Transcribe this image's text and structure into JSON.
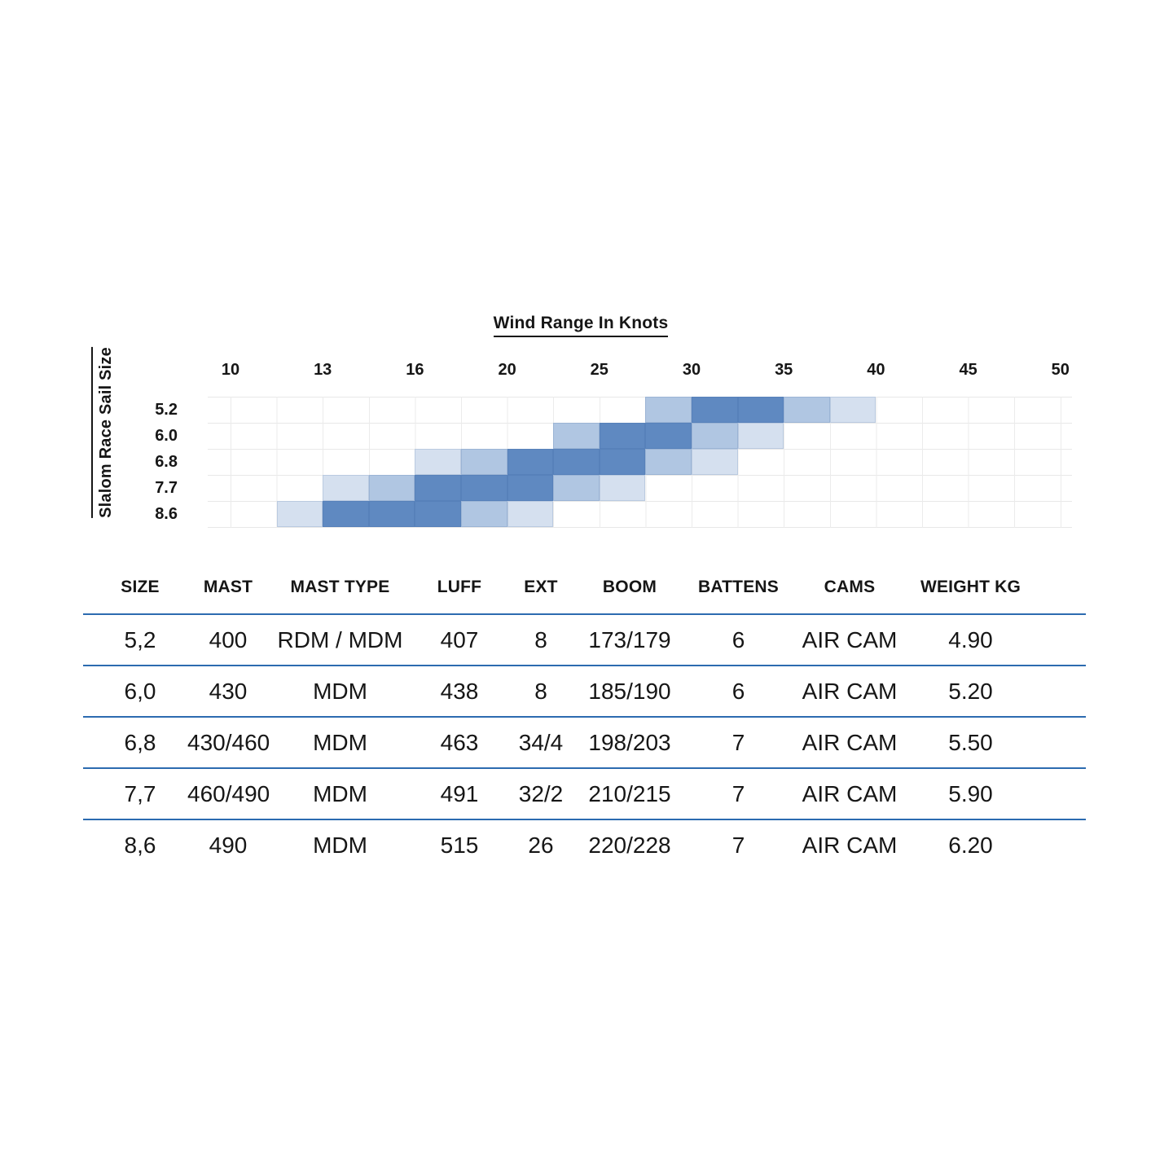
{
  "chart": {
    "title": "Wind Range In Knots",
    "y_axis_title": "Slalom Race Sail Size",
    "x_ticks": [
      "10",
      "13",
      "16",
      "20",
      "25",
      "30",
      "35",
      "40",
      "45",
      "50"
    ],
    "row_labels": [
      "5.2",
      "6.0",
      "6.8",
      "7.7",
      "8.6"
    ]
  },
  "chart_data": {
    "type": "heatmap",
    "title": "Wind Range In Knots",
    "xlabel": "Wind Range In Knots",
    "ylabel": "Slalom Race Sail Size",
    "x_tick_labels": [
      10,
      13,
      16,
      20,
      25,
      30,
      35,
      40,
      45,
      50
    ],
    "rows": [
      "5.2",
      "6.0",
      "6.8",
      "7.7",
      "8.6"
    ],
    "col_boundaries_knots": [
      10,
      11.5,
      13,
      14.5,
      16,
      18,
      20,
      22.5,
      25,
      27.5,
      30,
      32.5,
      35,
      37.5,
      40,
      42.5,
      45,
      47.5,
      50
    ],
    "palette": {
      "light": "#d5e0ef",
      "medium": "#b0c6e2",
      "dark": "#5f89c1"
    },
    "grid_color": "#ebebeb",
    "legend_position": "none",
    "cells": [
      {
        "row": 0,
        "col": 9,
        "shade": "medium"
      },
      {
        "row": 0,
        "col": 10,
        "shade": "dark"
      },
      {
        "row": 0,
        "col": 11,
        "shade": "dark"
      },
      {
        "row": 0,
        "col": 12,
        "shade": "medium"
      },
      {
        "row": 0,
        "col": 13,
        "shade": "light"
      },
      {
        "row": 1,
        "col": 7,
        "shade": "medium"
      },
      {
        "row": 1,
        "col": 8,
        "shade": "dark"
      },
      {
        "row": 1,
        "col": 9,
        "shade": "dark"
      },
      {
        "row": 1,
        "col": 10,
        "shade": "medium"
      },
      {
        "row": 1,
        "col": 11,
        "shade": "light"
      },
      {
        "row": 2,
        "col": 4,
        "shade": "light"
      },
      {
        "row": 2,
        "col": 5,
        "shade": "medium"
      },
      {
        "row": 2,
        "col": 6,
        "shade": "dark"
      },
      {
        "row": 2,
        "col": 7,
        "shade": "dark"
      },
      {
        "row": 2,
        "col": 8,
        "shade": "dark"
      },
      {
        "row": 2,
        "col": 9,
        "shade": "medium"
      },
      {
        "row": 2,
        "col": 10,
        "shade": "light"
      },
      {
        "row": 3,
        "col": 2,
        "shade": "light"
      },
      {
        "row": 3,
        "col": 3,
        "shade": "medium"
      },
      {
        "row": 3,
        "col": 4,
        "shade": "dark"
      },
      {
        "row": 3,
        "col": 5,
        "shade": "dark"
      },
      {
        "row": 3,
        "col": 6,
        "shade": "dark"
      },
      {
        "row": 3,
        "col": 7,
        "shade": "medium"
      },
      {
        "row": 3,
        "col": 8,
        "shade": "light"
      },
      {
        "row": 4,
        "col": 1,
        "shade": "light"
      },
      {
        "row": 4,
        "col": 2,
        "shade": "dark"
      },
      {
        "row": 4,
        "col": 3,
        "shade": "dark"
      },
      {
        "row": 4,
        "col": 4,
        "shade": "dark"
      },
      {
        "row": 4,
        "col": 5,
        "shade": "medium"
      },
      {
        "row": 4,
        "col": 6,
        "shade": "light"
      }
    ],
    "wind_ranges_by_sail": [
      {
        "sail": "5.2",
        "light": [
          [
            37.5,
            40
          ]
        ],
        "medium": [
          [
            27.5,
            30
          ],
          [
            35,
            37.5
          ]
        ],
        "dark": [
          [
            30,
            35
          ]
        ]
      },
      {
        "sail": "6.0",
        "light": [
          [
            32.5,
            35
          ]
        ],
        "medium": [
          [
            22.5,
            25
          ],
          [
            30,
            32.5
          ]
        ],
        "dark": [
          [
            25,
            30
          ]
        ]
      },
      {
        "sail": "6.8",
        "light": [
          [
            16,
            18
          ],
          [
            30,
            32.5
          ]
        ],
        "medium": [
          [
            18,
            20
          ],
          [
            27.5,
            30
          ]
        ],
        "dark": [
          [
            20,
            27.5
          ]
        ]
      },
      {
        "sail": "7.7",
        "light": [
          [
            13,
            14.5
          ],
          [
            25,
            27.5
          ]
        ],
        "medium": [
          [
            14.5,
            16
          ],
          [
            22.5,
            25
          ]
        ],
        "dark": [
          [
            16,
            22.5
          ]
        ]
      },
      {
        "sail": "8.6",
        "light": [
          [
            11.5,
            13
          ],
          [
            20,
            22.5
          ]
        ],
        "medium": [
          [
            18,
            20
          ]
        ],
        "dark": [
          [
            13,
            18
          ]
        ]
      }
    ]
  },
  "table": {
    "rule_color": "#2c6bb0",
    "headers": [
      "SIZE",
      "MAST",
      "MAST TYPE",
      "LUFF",
      "EXT",
      "BOOM",
      "BATTENS",
      "CAMS",
      "WEIGHT KG"
    ],
    "rows": [
      [
        "5,2",
        "400",
        "RDM / MDM",
        "407",
        "8",
        "173/179",
        "6",
        "AIR CAM",
        "4.90"
      ],
      [
        "6,0",
        "430",
        "MDM",
        "438",
        "8",
        "185/190",
        "6",
        "AIR CAM",
        "5.20"
      ],
      [
        "6,8",
        "430/460",
        "MDM",
        "463",
        "34/4",
        "198/203",
        "7",
        "AIR CAM",
        "5.50"
      ],
      [
        "7,7",
        "460/490",
        "MDM",
        "491",
        "32/2",
        "210/215",
        "7",
        "AIR CAM",
        "5.90"
      ],
      [
        "8,6",
        "490",
        "MDM",
        "515",
        "26",
        "220/228",
        "7",
        "AIR CAM",
        "6.20"
      ]
    ]
  }
}
